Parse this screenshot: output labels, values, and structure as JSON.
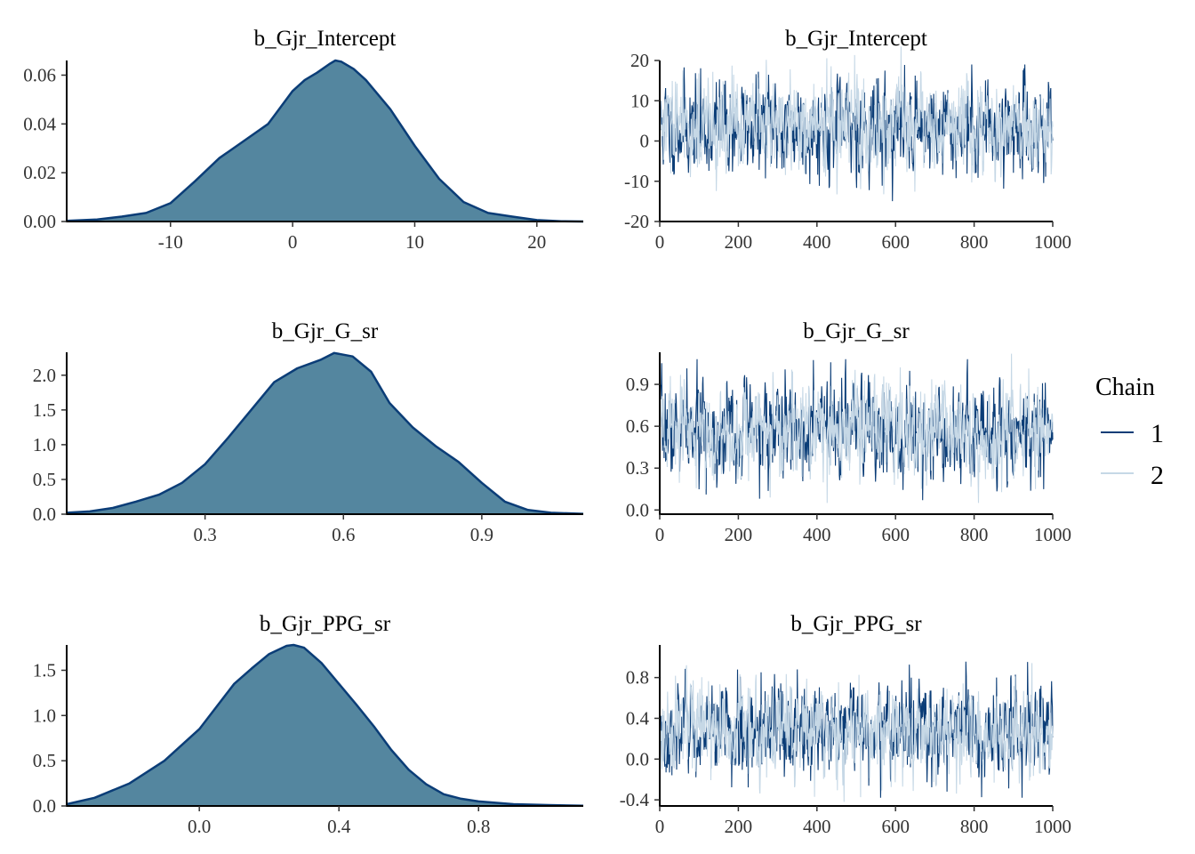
{
  "colors": {
    "density_fill": "#54869f",
    "density_line": "#0b3d77",
    "chain1": "#0b3d77",
    "chain2": "#c6d8e6"
  },
  "legend": {
    "title": "Chain",
    "items": [
      {
        "label": "1",
        "color": "#0b3d77"
      },
      {
        "label": "2",
        "color": "#c6d8e6"
      }
    ]
  },
  "chart_data": [
    {
      "type": "area",
      "title": "b_Gjr_Intercept",
      "xlabel": "",
      "ylabel": "",
      "xlim": [
        -18.5,
        23.8
      ],
      "ylim": [
        0,
        0.066
      ],
      "xticks": [
        -10,
        0,
        10,
        20
      ],
      "xtick_labels": [
        "-10",
        "0",
        "10",
        "20"
      ],
      "yticks": [
        0,
        0.02,
        0.04,
        0.06
      ],
      "ytick_labels": [
        "0.00",
        "0.02",
        "0.04",
        "0.06"
      ],
      "x": [
        -18.5,
        -16,
        -14,
        -12,
        -10,
        -8,
        -6,
        -4,
        -2,
        0,
        1,
        2,
        3,
        3.5,
        4,
        5,
        6,
        8,
        10,
        12,
        14,
        16,
        18,
        20,
        22,
        23.8
      ],
      "y": [
        0.0003,
        0.0008,
        0.002,
        0.0035,
        0.0075,
        0.0165,
        0.026,
        0.033,
        0.04,
        0.0535,
        0.058,
        0.061,
        0.0645,
        0.066,
        0.0655,
        0.0625,
        0.058,
        0.046,
        0.031,
        0.0175,
        0.008,
        0.0035,
        0.002,
        0.0006,
        0.0001,
        0.0
      ]
    },
    {
      "type": "line",
      "title": "b_Gjr_Intercept",
      "xlabel": "",
      "ylabel": "",
      "xlim": [
        0,
        1000
      ],
      "ylim": [
        -20,
        20
      ],
      "xticks": [
        0,
        200,
        400,
        600,
        800,
        1000
      ],
      "xtick_labels": [
        "0",
        "200",
        "400",
        "600",
        "800",
        "1000"
      ],
      "yticks": [
        -20,
        -10,
        0,
        10,
        20
      ],
      "ytick_labels": [
        "-20",
        "-10",
        "0",
        "10",
        "20"
      ],
      "series": [
        {
          "name": "1",
          "mean": 3.5,
          "sd": 5.8,
          "min": -18.5,
          "max": 19,
          "seed": 11
        },
        {
          "name": "2",
          "mean": 3.5,
          "sd": 5.8,
          "min": -17,
          "max": 23.5,
          "seed": 29
        }
      ]
    },
    {
      "type": "area",
      "title": "b_Gjr_G_sr",
      "xlabel": "",
      "ylabel": "",
      "xlim": [
        -0.0,
        1.12
      ],
      "ylim": [
        0,
        2.33
      ],
      "xticks": [
        0.3,
        0.6,
        0.9
      ],
      "xtick_labels": [
        "0.3",
        "0.6",
        "0.9"
      ],
      "yticks": [
        0,
        0.5,
        1.0,
        1.5,
        2.0
      ],
      "ytick_labels": [
        "0.0",
        "0.5",
        "1.0",
        "1.5",
        "2.0"
      ],
      "x": [
        0.0,
        0.05,
        0.1,
        0.15,
        0.2,
        0.25,
        0.3,
        0.35,
        0.4,
        0.45,
        0.5,
        0.55,
        0.58,
        0.62,
        0.66,
        0.7,
        0.75,
        0.8,
        0.85,
        0.9,
        0.95,
        1.0,
        1.05,
        1.12
      ],
      "y": [
        0.02,
        0.04,
        0.09,
        0.18,
        0.28,
        0.45,
        0.72,
        1.1,
        1.5,
        1.9,
        2.1,
        2.22,
        2.32,
        2.27,
        2.05,
        1.6,
        1.25,
        0.98,
        0.75,
        0.45,
        0.18,
        0.06,
        0.02,
        0.005
      ]
    },
    {
      "type": "line",
      "title": "b_Gjr_G_sr",
      "xlabel": "",
      "ylabel": "",
      "xlim": [
        0,
        1000
      ],
      "ylim": [
        -0.03,
        1.13
      ],
      "xticks": [
        0,
        200,
        400,
        600,
        800,
        1000
      ],
      "xtick_labels": [
        "0",
        "200",
        "400",
        "600",
        "800",
        "1000"
      ],
      "yticks": [
        0,
        0.3,
        0.6,
        0.9
      ],
      "ytick_labels": [
        "0.0",
        "0.3",
        "0.6",
        "0.9"
      ],
      "series": [
        {
          "name": "1",
          "mean": 0.57,
          "sd": 0.17,
          "min": 0.01,
          "max": 1.08,
          "seed": 7
        },
        {
          "name": "2",
          "mean": 0.57,
          "sd": 0.17,
          "min": 0.05,
          "max": 1.12,
          "seed": 43
        }
      ]
    },
    {
      "type": "area",
      "title": "b_Gjr_PPG_sr",
      "xlabel": "",
      "ylabel": "",
      "xlim": [
        -0.38,
        1.1
      ],
      "ylim": [
        0,
        1.78
      ],
      "xticks": [
        0.0,
        0.4,
        0.8
      ],
      "xtick_labels": [
        "0.0",
        "0.4",
        "0.8"
      ],
      "yticks": [
        0,
        0.5,
        1.0,
        1.5
      ],
      "ytick_labels": [
        "0.0",
        "0.5",
        "1.0",
        "1.5"
      ],
      "x": [
        -0.38,
        -0.3,
        -0.2,
        -0.1,
        0.0,
        0.05,
        0.1,
        0.15,
        0.2,
        0.25,
        0.27,
        0.3,
        0.35,
        0.4,
        0.45,
        0.5,
        0.55,
        0.6,
        0.65,
        0.7,
        0.75,
        0.8,
        0.9,
        1.0,
        1.1
      ],
      "y": [
        0.02,
        0.09,
        0.25,
        0.5,
        0.85,
        1.1,
        1.35,
        1.52,
        1.68,
        1.77,
        1.78,
        1.75,
        1.58,
        1.35,
        1.12,
        0.88,
        0.62,
        0.4,
        0.24,
        0.13,
        0.08,
        0.05,
        0.02,
        0.01,
        0.003
      ]
    },
    {
      "type": "line",
      "title": "b_Gjr_PPG_sr",
      "xlabel": "",
      "ylabel": "",
      "xlim": [
        0,
        1000
      ],
      "ylim": [
        -0.46,
        1.12
      ],
      "xticks": [
        0,
        200,
        400,
        600,
        800,
        1000
      ],
      "xtick_labels": [
        "0",
        "200",
        "400",
        "600",
        "800",
        "1000"
      ],
      "yticks": [
        -0.4,
        0.0,
        0.4,
        0.8
      ],
      "ytick_labels": [
        "-0.4",
        "0.0",
        "0.4",
        "0.8"
      ],
      "series": [
        {
          "name": "1",
          "mean": 0.27,
          "sd": 0.22,
          "min": -0.38,
          "max": 1.05,
          "seed": 3
        },
        {
          "name": "2",
          "mean": 0.27,
          "sd": 0.22,
          "min": -0.42,
          "max": 1.08,
          "seed": 17
        }
      ]
    }
  ]
}
